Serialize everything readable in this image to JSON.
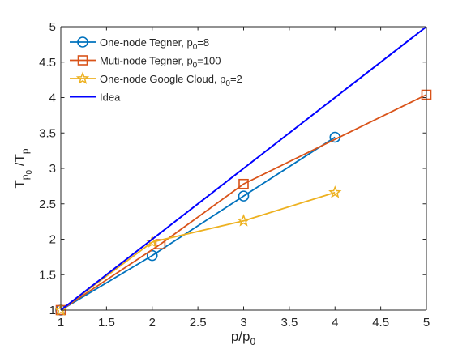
{
  "chart_data": {
    "type": "line",
    "title": "",
    "xlabel": {
      "base": "p/p",
      "sub": "0"
    },
    "ylabel": {
      "parts": [
        {
          "t": "T"
        },
        {
          "t": "p",
          "sub": true
        },
        {
          "t": "0",
          "subsub": true
        },
        {
          "t": " /T"
        },
        {
          "t": "p",
          "sub": true
        }
      ]
    },
    "xlim": [
      1,
      5
    ],
    "ylim": [
      1,
      5
    ],
    "xticks": [
      1,
      1.5,
      2,
      2.5,
      3,
      3.5,
      4,
      4.5,
      5
    ],
    "yticks": [
      1,
      1.5,
      2,
      2.5,
      3,
      3.5,
      4,
      4.5,
      5
    ],
    "xtick_labels": [
      "1",
      "1.5",
      "2",
      "2.5",
      "3",
      "3.5",
      "4",
      "4.5",
      "5"
    ],
    "ytick_labels": [
      "1",
      "1.5",
      "2",
      "2.5",
      "3",
      "3.5",
      "4",
      "4.5",
      "5"
    ],
    "grid": false,
    "legend_position": "top-left",
    "series": [
      {
        "name": "One-node Tegner, p0=8",
        "legend": {
          "pre": "One-node Tegner, p",
          "sub": "0",
          "post": "=8"
        },
        "color": "#0072BD",
        "marker": "circle",
        "x": [
          1,
          2,
          3,
          4
        ],
        "y": [
          1,
          1.77,
          2.61,
          3.44
        ]
      },
      {
        "name": "Muti-node Tegner, p0=100",
        "legend": {
          "pre": "Muti-node Tegner, p",
          "sub": "0",
          "post": "=100"
        },
        "color": "#D95319",
        "marker": "square",
        "x": [
          1,
          2.09,
          3,
          5
        ],
        "y": [
          1,
          1.93,
          2.78,
          4.04
        ]
      },
      {
        "name": "One-node Google Cloud, p0=2",
        "legend": {
          "pre": "One-node Google Cloud, p",
          "sub": "0",
          "post": "=2"
        },
        "color": "#EDB120",
        "marker": "star",
        "x": [
          1,
          2,
          3,
          4
        ],
        "y": [
          1,
          1.96,
          2.26,
          2.66
        ]
      },
      {
        "name": "Idea",
        "legend": {
          "pre": "Idea",
          "sub": "",
          "post": ""
        },
        "color": "#0000FF",
        "marker": "none",
        "x": [
          1,
          5
        ],
        "y": [
          1,
          5
        ]
      }
    ]
  }
}
